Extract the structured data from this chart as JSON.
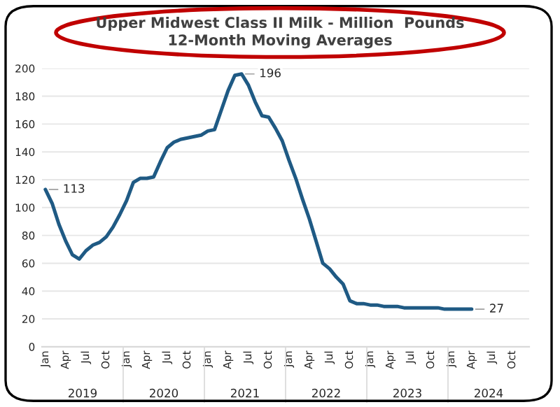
{
  "chart_data": {
    "type": "line",
    "title": "Upper Midwest Class II Milk - Million  Pounds\n12-Month Moving Averages",
    "categories": [
      "Jan",
      null,
      null,
      "Apr",
      null,
      null,
      "Jul",
      null,
      null,
      "Oct",
      null,
      null,
      "Jan",
      null,
      null,
      "Apr",
      null,
      null,
      "Jul",
      null,
      null,
      "Oct",
      null,
      null,
      "Jan",
      null,
      null,
      "Apr",
      null,
      null,
      "Jul",
      null,
      null,
      "Oct",
      null,
      null,
      "Jan",
      null,
      null,
      "Apr",
      null,
      null,
      "Jul",
      null,
      null,
      "Oct",
      null,
      null,
      "Jan",
      null,
      null,
      "Apr",
      null,
      null,
      "Jul",
      null,
      null,
      "Oct",
      null,
      null,
      "Jan",
      null,
      null,
      "Apr",
      null,
      null,
      "Jul",
      null,
      null,
      "Oct",
      null,
      null
    ],
    "series": [
      {
        "color": "#1f5a84",
        "values": [
          113,
          103,
          88,
          76,
          66,
          63,
          69,
          73,
          75,
          79,
          86,
          95,
          105,
          118,
          121,
          121,
          122,
          133,
          143,
          147,
          149,
          150,
          151,
          152,
          155,
          156,
          170,
          184,
          195,
          196,
          188,
          176,
          166,
          165,
          157,
          148,
          134,
          121,
          106,
          92,
          76,
          60,
          56,
          50,
          45,
          33,
          31,
          31,
          30,
          30,
          29,
          29,
          29,
          28,
          28,
          28,
          28,
          28,
          28,
          27,
          27,
          27,
          27,
          27,
          null,
          null,
          null,
          null,
          null,
          null,
          null,
          null
        ],
        "value_labels": [
          "113",
          null,
          null,
          null,
          null,
          null,
          null,
          null,
          null,
          null,
          null,
          null,
          null,
          null,
          null,
          null,
          null,
          null,
          null,
          null,
          null,
          null,
          null,
          null,
          null,
          null,
          null,
          null,
          null,
          "196",
          null,
          null,
          null,
          null,
          null,
          null,
          null,
          null,
          null,
          null,
          null,
          null,
          null,
          null,
          null,
          null,
          null,
          null,
          null,
          null,
          null,
          null,
          null,
          null,
          null,
          null,
          null,
          null,
          null,
          null,
          null,
          null,
          null,
          "27",
          null,
          null,
          null,
          null,
          null,
          null,
          null,
          null
        ]
      }
    ],
    "annotations": [
      "2019",
      "2020",
      "2021",
      "2022",
      "2023",
      "2024"
    ],
    "ylim": [
      0,
      200
    ],
    "yticks": [
      0,
      20,
      40,
      60,
      80,
      100,
      120,
      140,
      160,
      180,
      200
    ],
    "grid": "y"
  }
}
